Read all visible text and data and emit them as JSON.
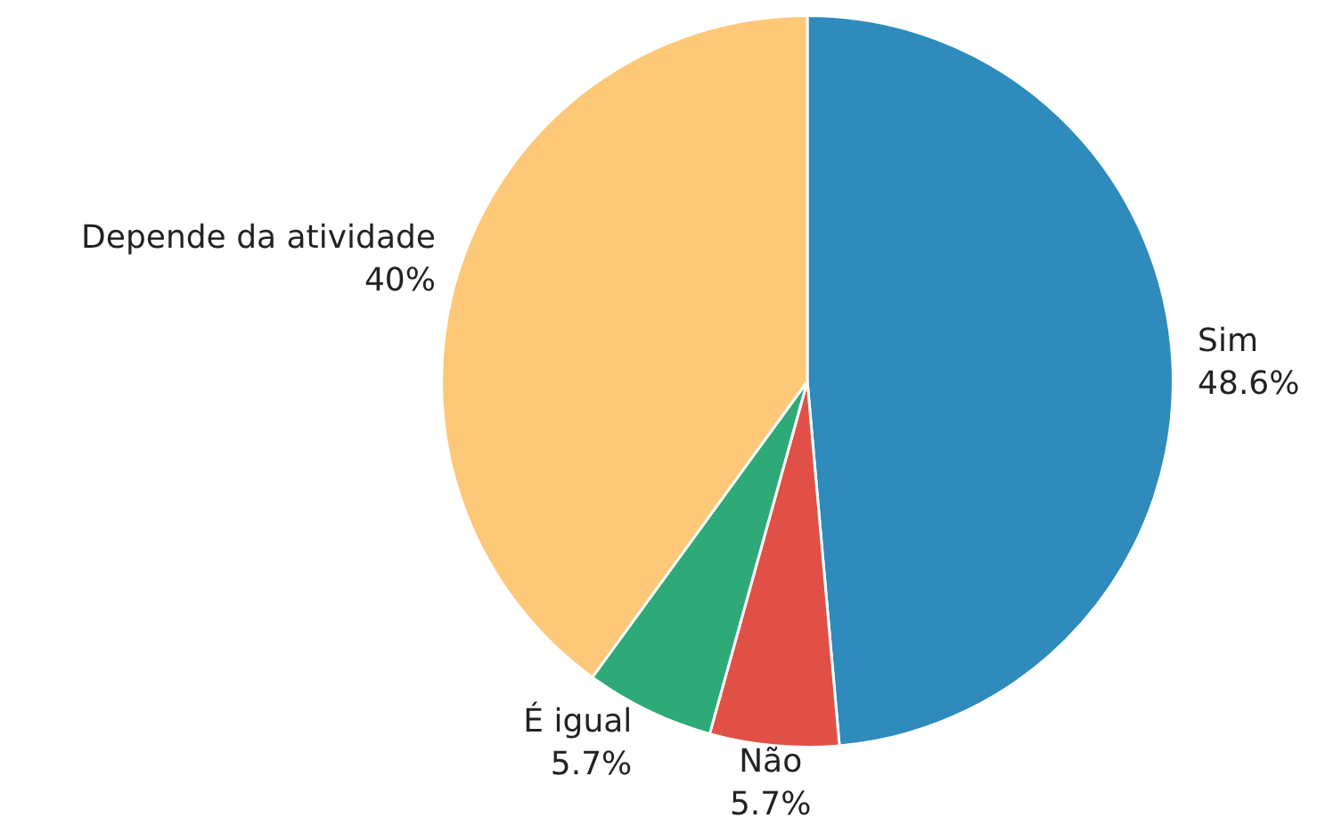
{
  "chart_data": {
    "type": "pie",
    "categories": [
      "Sim",
      "Não",
      "É igual",
      "Depende da atividade"
    ],
    "values": [
      48.6,
      5.7,
      5.7,
      40
    ],
    "colors": [
      "#2e8bbc",
      "#e05046",
      "#2eaa78",
      "#fdc878"
    ],
    "value_labels": [
      "48.6%",
      "5.7%",
      "5.7%",
      "40%"
    ]
  }
}
